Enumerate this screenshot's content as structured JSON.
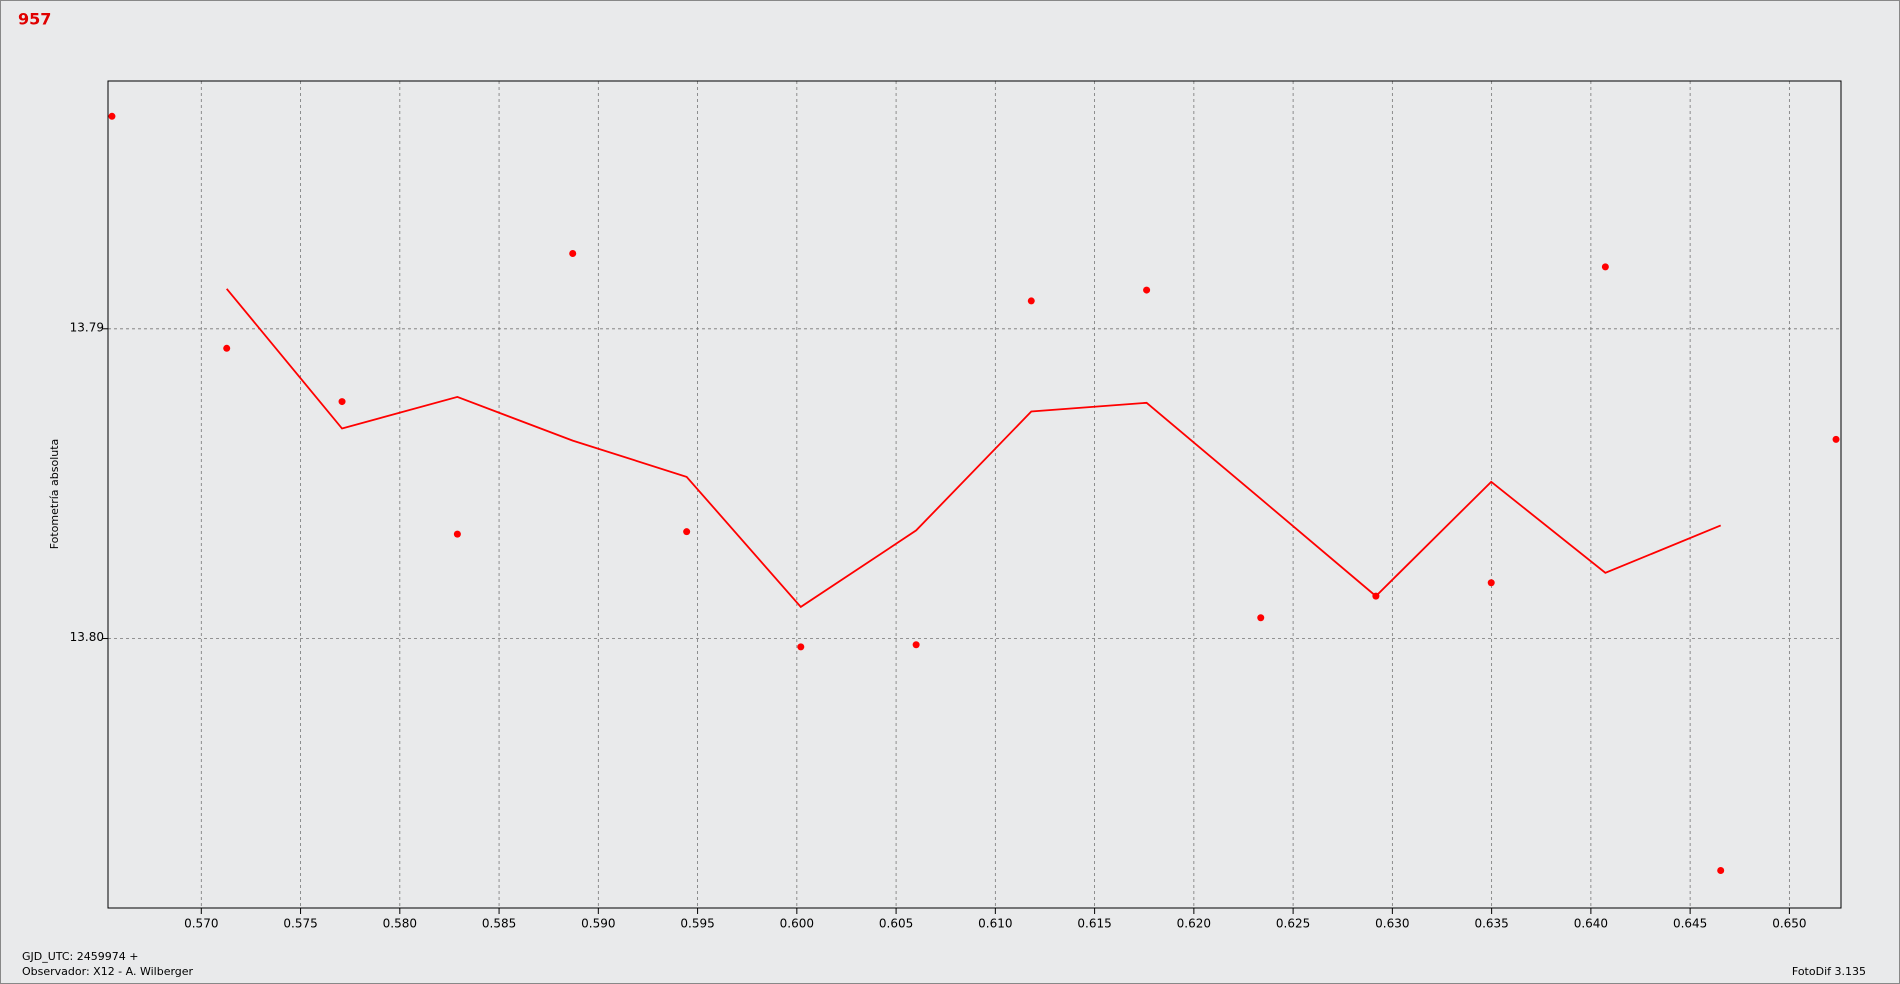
{
  "chart_data": {
    "type": "scatter",
    "title": "957",
    "ylabel": "Fotometría absoluta",
    "notes": [
      "GJD_UTC: 2459974 +",
      "Observador: X12 - A. Wilberger"
    ],
    "credit": "FotoDif 3.135",
    "xlim": [
      0.5653,
      0.6526
    ],
    "ylim": [
      13.8087,
      13.782
    ],
    "xticks": [
      {
        "value": 0.57,
        "label": "0.570"
      },
      {
        "value": 0.575,
        "label": "0.575"
      },
      {
        "value": 0.58,
        "label": "0.580"
      },
      {
        "value": 0.585,
        "label": "0.585"
      },
      {
        "value": 0.59,
        "label": "0.590"
      },
      {
        "value": 0.595,
        "label": "0.595"
      },
      {
        "value": 0.6,
        "label": "0.600"
      },
      {
        "value": 0.605,
        "label": "0.605"
      },
      {
        "value": 0.61,
        "label": "0.610"
      },
      {
        "value": 0.615,
        "label": "0.615"
      },
      {
        "value": 0.62,
        "label": "0.620"
      },
      {
        "value": 0.625,
        "label": "0.625"
      },
      {
        "value": 0.63,
        "label": "0.630"
      },
      {
        "value": 0.635,
        "label": "0.635"
      },
      {
        "value": 0.64,
        "label": "0.640"
      },
      {
        "value": 0.645,
        "label": "0.645"
      },
      {
        "value": 0.65,
        "label": "0.650"
      }
    ],
    "yticks": [
      13.79,
      {
        "value": 13.8,
        "label": "13.80"
      }
    ],
    "grid": true,
    "series": [
      {
        "type": "scatter",
        "color": "#ff0000",
        "x": [
          0.5655,
          0.57128,
          0.57709,
          0.5829,
          0.58871,
          0.59445,
          0.6002,
          0.60601,
          0.61181,
          0.61762,
          0.62337,
          0.62917,
          0.63498,
          0.64073,
          0.64654,
          0.65235
        ],
        "values": [
          13.78314,
          13.79063,
          13.79235,
          13.79663,
          13.78757,
          13.79655,
          13.80027,
          13.8002,
          13.7891,
          13.78875,
          13.79933,
          13.79863,
          13.7982,
          13.788,
          13.80749,
          13.79357
        ]
      },
      {
        "type": "line",
        "color": "#ff0000",
        "x": [
          0.57128,
          0.57709,
          0.5829,
          0.58871,
          0.59445,
          0.6002,
          0.60601,
          0.61181,
          0.61762,
          0.62337,
          0.62917,
          0.63498,
          0.64073,
          0.64654
        ],
        "values": [
          13.78871,
          13.79322,
          13.7922,
          13.79361,
          13.79478,
          13.79898,
          13.79651,
          13.79267,
          13.79239,
          13.79549,
          13.79863,
          13.79494,
          13.79788,
          13.79635
        ]
      }
    ]
  }
}
